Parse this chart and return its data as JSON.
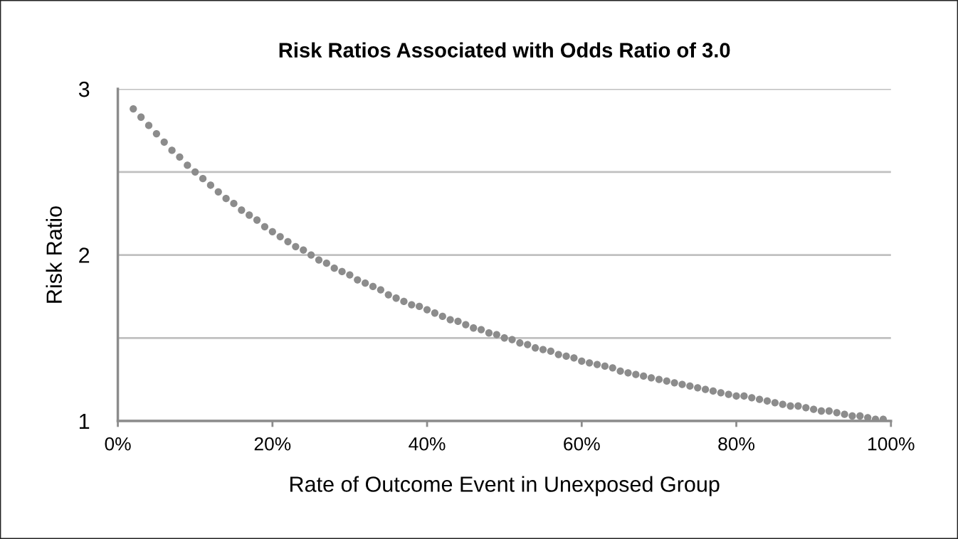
{
  "chart_data": {
    "type": "scatter",
    "title": "Risk Ratios Associated with Odds Ratio of 3.0",
    "xlabel": "Rate of Outcome Event in Unexposed Group",
    "ylabel": "Risk Ratio",
    "x": [
      2,
      3,
      4,
      5,
      6,
      7,
      8,
      9,
      10,
      11,
      12,
      13,
      14,
      15,
      16,
      17,
      18,
      19,
      20,
      21,
      22,
      23,
      24,
      25,
      26,
      27,
      28,
      29,
      30,
      31,
      32,
      33,
      34,
      35,
      36,
      37,
      38,
      39,
      40,
      41,
      42,
      43,
      44,
      45,
      46,
      47,
      48,
      49,
      50,
      51,
      52,
      53,
      54,
      55,
      56,
      57,
      58,
      59,
      60,
      61,
      62,
      63,
      64,
      65,
      66,
      67,
      68,
      69,
      70,
      71,
      72,
      73,
      74,
      75,
      76,
      77,
      78,
      79,
      80,
      81,
      82,
      83,
      84,
      85,
      86,
      87,
      88,
      89,
      90,
      91,
      92,
      93,
      94,
      95,
      96,
      97,
      98,
      99
    ],
    "series": [
      {
        "color": "#8c8c8c",
        "values": [
          2.88,
          2.83,
          2.78,
          2.73,
          2.68,
          2.63,
          2.59,
          2.54,
          2.5,
          2.46,
          2.42,
          2.38,
          2.34,
          2.31,
          2.27,
          2.24,
          2.21,
          2.17,
          2.14,
          2.11,
          2.08,
          2.05,
          2.03,
          2.0,
          1.97,
          1.95,
          1.92,
          1.9,
          1.88,
          1.85,
          1.83,
          1.81,
          1.79,
          1.76,
          1.74,
          1.72,
          1.7,
          1.69,
          1.67,
          1.65,
          1.63,
          1.61,
          1.6,
          1.58,
          1.56,
          1.55,
          1.53,
          1.52,
          1.5,
          1.49,
          1.47,
          1.46,
          1.44,
          1.43,
          1.42,
          1.4,
          1.39,
          1.38,
          1.36,
          1.35,
          1.34,
          1.33,
          1.32,
          1.3,
          1.29,
          1.28,
          1.27,
          1.26,
          1.25,
          1.24,
          1.23,
          1.22,
          1.21,
          1.2,
          1.19,
          1.18,
          1.17,
          1.16,
          1.15,
          1.15,
          1.14,
          1.13,
          1.12,
          1.11,
          1.1,
          1.09,
          1.09,
          1.08,
          1.07,
          1.06,
          1.06,
          1.05,
          1.04,
          1.03,
          1.03,
          1.02,
          1.01,
          1.01
        ]
      }
    ],
    "xlim": [
      0,
      100
    ],
    "xticks": [
      {
        "value": 0,
        "label": "0%"
      },
      {
        "value": 20,
        "label": "20%"
      },
      {
        "value": 40,
        "label": "40%"
      },
      {
        "value": 60,
        "label": "60%"
      },
      {
        "value": 80,
        "label": "80%"
      },
      {
        "value": 100,
        "label": "100%"
      }
    ],
    "ylim": [
      1,
      3
    ],
    "yticks": [
      1,
      {
        "value": 1.5,
        "label": null
      },
      2,
      {
        "value": 2.5,
        "label": null
      },
      3
    ],
    "grid": "y",
    "marker": "circle"
  }
}
